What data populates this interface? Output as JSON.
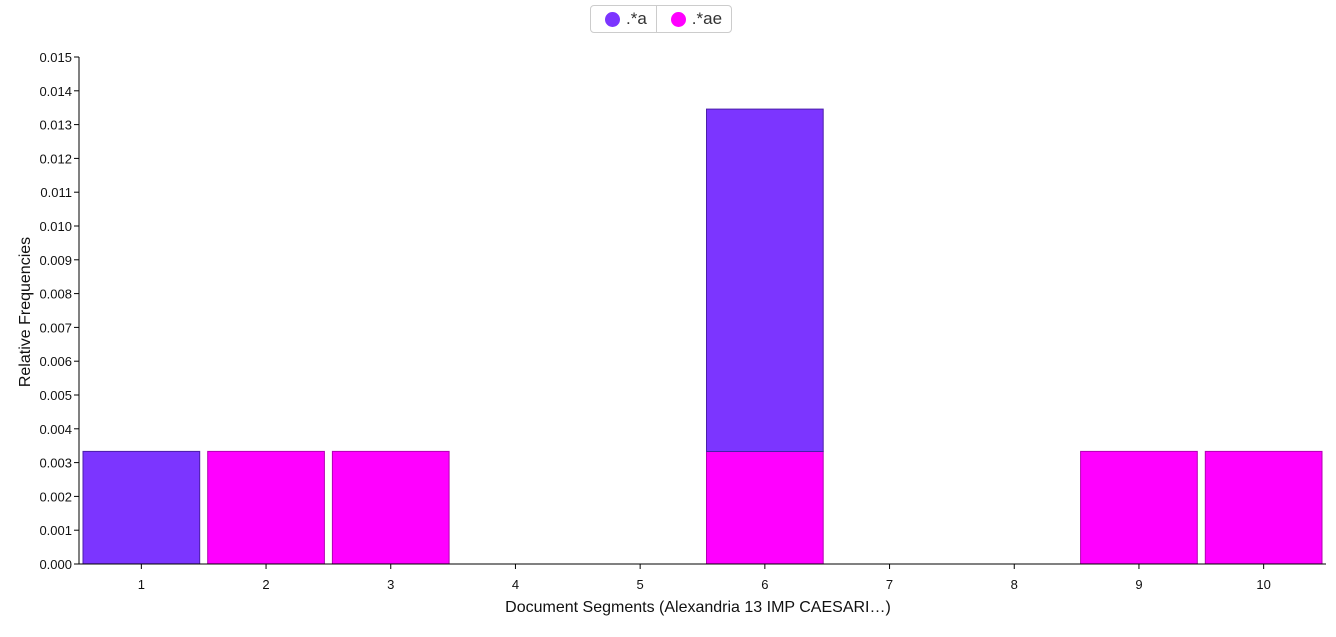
{
  "chart_data": {
    "type": "bar",
    "stacked": true,
    "categories": [
      "1",
      "2",
      "3",
      "4",
      "5",
      "6",
      "7",
      "8",
      "9",
      "10"
    ],
    "series": [
      {
        "name": ".*ae",
        "color": "#ff00ff",
        "values": [
          0,
          0.00333,
          0.00333,
          0,
          0,
          0.00333,
          0,
          0,
          0.00333,
          0.00333
        ]
      },
      {
        "name": ".*a",
        "color": "#7c35ff",
        "values": [
          0.00333,
          0,
          0,
          0,
          0,
          0.01013,
          0,
          0,
          0,
          0
        ]
      }
    ],
    "xlabel": "Document Segments (Alexandria 13 IMP CAESARI…)",
    "ylabel": "Relative Frequencies",
    "ylim": [
      0,
      0.015
    ],
    "yticks": [
      "0.000",
      "0.001",
      "0.002",
      "0.003",
      "0.004",
      "0.005",
      "0.006",
      "0.007",
      "0.008",
      "0.009",
      "0.010",
      "0.011",
      "0.012",
      "0.013",
      "0.014",
      "0.015"
    ],
    "grid": false,
    "legend_position": "top-center"
  },
  "legend": {
    "items": [
      {
        "label": ".*a",
        "color": "#7c35ff"
      },
      {
        "label": ".*ae",
        "color": "#ff00ff"
      }
    ]
  }
}
